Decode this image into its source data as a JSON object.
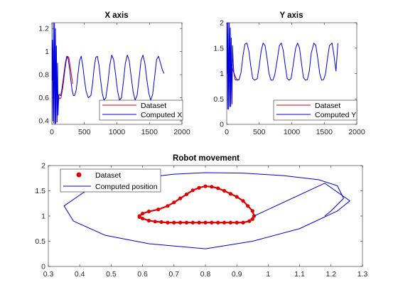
{
  "chart_data": [
    {
      "id": "x-axis-plot",
      "type": "line",
      "title": "X axis",
      "xlabel": "",
      "ylabel": "",
      "xlim": [
        0,
        2000
      ],
      "ylim": [
        0.37,
        1.25
      ],
      "xticks": [
        0,
        500,
        1000,
        1500,
        2000
      ],
      "yticks": [
        0.4,
        0.6,
        0.8,
        1,
        1.2
      ],
      "xtick_labels": [
        "0",
        "500",
        "1000",
        "1500",
        "2000"
      ],
      "ytick_labels": [
        "0.4",
        "0.6",
        "0.8",
        "1",
        "1.2"
      ],
      "grid": false,
      "legend": {
        "placement": "bottom-right",
        "entries": [
          "Dataset",
          "Computed X"
        ]
      },
      "series": [
        {
          "name": "Dataset",
          "color": "#e00000",
          "x": [
            0,
            20,
            40,
            60,
            80,
            100,
            120,
            140,
            160,
            180,
            200,
            220,
            240,
            260,
            280,
            300,
            320
          ],
          "y": [
            0.78,
            0.76,
            0.73,
            0.69,
            0.65,
            0.62,
            0.59,
            0.6,
            0.66,
            0.74,
            0.84,
            0.92,
            0.96,
            0.95,
            0.88,
            0.8,
            0.72
          ]
        },
        {
          "name": "Computed X",
          "color": "#0000e0",
          "x": [
            0,
            8,
            15,
            22,
            30,
            40,
            48,
            55,
            62,
            70,
            80,
            88,
            95,
            105,
            115,
            125,
            135,
            150,
            170,
            190,
            210,
            230,
            250,
            270,
            290,
            310,
            330,
            350,
            375,
            400,
            425,
            450,
            475,
            500,
            525,
            560,
            600,
            625,
            650,
            675,
            700,
            725,
            750,
            775,
            800,
            830,
            860,
            890,
            920,
            950,
            980,
            1010,
            1040,
            1070,
            1100,
            1130,
            1160,
            1190,
            1220,
            1250,
            1280,
            1310,
            1340,
            1370,
            1400,
            1430,
            1460,
            1490,
            1520,
            1550,
            1580,
            1610,
            1640,
            1670,
            1700,
            1725
          ],
          "y": [
            0.75,
            1.1,
            0.4,
            1.25,
            0.38,
            1.25,
            0.37,
            1.2,
            0.38,
            1.05,
            0.39,
            0.9,
            0.45,
            0.62,
            0.63,
            0.62,
            0.62,
            0.66,
            0.74,
            0.83,
            0.91,
            0.96,
            0.94,
            0.86,
            0.76,
            0.67,
            0.62,
            0.62,
            0.67,
            0.8,
            0.92,
            0.96,
            0.88,
            0.76,
            0.66,
            0.6,
            0.62,
            0.72,
            0.86,
            0.95,
            0.96,
            0.88,
            0.75,
            0.64,
            0.58,
            0.6,
            0.72,
            0.88,
            0.97,
            0.93,
            0.8,
            0.66,
            0.58,
            0.6,
            0.74,
            0.9,
            0.97,
            0.92,
            0.78,
            0.65,
            0.58,
            0.62,
            0.76,
            0.92,
            0.97,
            0.9,
            0.76,
            0.64,
            0.58,
            0.63,
            0.78,
            0.93,
            0.96,
            0.9,
            0.84,
            0.81
          ]
        }
      ]
    },
    {
      "id": "y-axis-plot",
      "type": "line",
      "title": "Y axis",
      "xlabel": "",
      "ylabel": "",
      "xlim": [
        0,
        2000
      ],
      "ylim": [
        0,
        2
      ],
      "xticks": [
        0,
        500,
        1000,
        1500,
        2000
      ],
      "yticks": [
        0,
        0.5,
        1,
        1.5,
        2
      ],
      "xtick_labels": [
        "0",
        "500",
        "1000",
        "1500",
        "2000"
      ],
      "ytick_labels": [
        "0",
        "0.5",
        "1",
        "1.5",
        "2"
      ],
      "grid": false,
      "legend": {
        "placement": "bottom-right",
        "entries": [
          "Dataset",
          "Computed Y"
        ]
      },
      "series": [
        {
          "name": "Dataset",
          "color": "#e00000",
          "x": [
            0,
            20,
            40,
            60,
            80,
            100,
            120,
            140,
            160,
            180
          ],
          "y": [
            1.55,
            1.45,
            1.35,
            1.25,
            1.15,
            1.05,
            0.98,
            0.92,
            0.88,
            0.88
          ]
        },
        {
          "name": "Computed Y",
          "color": "#0000e0",
          "x": [
            0,
            8,
            15,
            22,
            30,
            40,
            48,
            55,
            62,
            70,
            80,
            90,
            100,
            110,
            130,
            160,
            190,
            220,
            250,
            280,
            310,
            340,
            370,
            400,
            430,
            470,
            500,
            530,
            560,
            590,
            620,
            650,
            680,
            710,
            740,
            780,
            810,
            840,
            870,
            900,
            930,
            960,
            990,
            1020,
            1060,
            1090,
            1120,
            1150,
            1180,
            1210,
            1240,
            1270,
            1300,
            1340,
            1370,
            1400,
            1430,
            1460,
            1490,
            1520,
            1550,
            1580,
            1620,
            1650,
            1680,
            1710
          ],
          "y": [
            1.0,
            2.0,
            0.3,
            2.0,
            0.3,
            2.0,
            0.35,
            1.9,
            0.35,
            1.7,
            0.4,
            1.55,
            1.2,
            1.02,
            0.88,
            0.87,
            0.88,
            1.02,
            1.35,
            1.58,
            1.6,
            1.45,
            1.15,
            0.9,
            0.87,
            0.9,
            1.15,
            1.45,
            1.6,
            1.55,
            1.3,
            1.0,
            0.87,
            0.87,
            0.98,
            1.3,
            1.55,
            1.6,
            1.45,
            1.15,
            0.9,
            0.87,
            0.9,
            1.15,
            1.5,
            1.6,
            1.5,
            1.2,
            0.92,
            0.87,
            0.88,
            1.05,
            1.4,
            1.6,
            1.55,
            1.3,
            1.0,
            0.87,
            0.88,
            1.0,
            1.3,
            1.55,
            1.6,
            1.35,
            1.05,
            1.6
          ]
        }
      ]
    },
    {
      "id": "robot-movement-plot",
      "type": "scatter",
      "title": "Robot movement",
      "xlabel": "",
      "ylabel": "",
      "xlim": [
        0.3,
        1.3
      ],
      "ylim": [
        0,
        2
      ],
      "xticks": [
        0.3,
        0.4,
        0.5,
        0.6,
        0.7,
        0.8,
        0.9,
        1,
        1.1,
        1.2,
        1.3
      ],
      "yticks": [
        0,
        0.5,
        1,
        1.5,
        2
      ],
      "xtick_labels": [
        "0.3",
        "0.4",
        "0.5",
        "0.6",
        "0.7",
        "0.8",
        "0.9",
        "1",
        "1.1",
        "1.2",
        "1.3"
      ],
      "ytick_labels": [
        "0",
        "0.5",
        "1",
        "1.5",
        "2"
      ],
      "grid": false,
      "legend": {
        "placement": "top-left",
        "entries": [
          "Dataset",
          "Computed position"
        ]
      },
      "series": [
        {
          "name": "Dataset",
          "kind": "markers",
          "color": "#e00000",
          "x": [
            0.59,
            0.6,
            0.62,
            0.65,
            0.68,
            0.7,
            0.72,
            0.74,
            0.76,
            0.78,
            0.8,
            0.82,
            0.84,
            0.86,
            0.88,
            0.9,
            0.92,
            0.935,
            0.95,
            0.955,
            0.95,
            0.94,
            0.92,
            0.9,
            0.88,
            0.86,
            0.84,
            0.82,
            0.8,
            0.78,
            0.76,
            0.74,
            0.72,
            0.7,
            0.68,
            0.66,
            0.64,
            0.62,
            0.6,
            0.59
          ],
          "y": [
            1.0,
            1.05,
            1.09,
            1.13,
            1.2,
            1.27,
            1.35,
            1.43,
            1.51,
            1.56,
            1.59,
            1.58,
            1.55,
            1.5,
            1.44,
            1.38,
            1.3,
            1.2,
            1.1,
            1.0,
            0.94,
            0.9,
            0.87,
            0.87,
            0.87,
            0.87,
            0.87,
            0.87,
            0.87,
            0.87,
            0.87,
            0.87,
            0.87,
            0.87,
            0.87,
            0.88,
            0.89,
            0.91,
            0.95,
            0.98
          ]
        },
        {
          "name": "Computed position",
          "kind": "line",
          "color": "#0000e0",
          "x": [
            0.955,
            1.18,
            1.26,
            1.22,
            1.1,
            0.95,
            0.8,
            0.62,
            0.48,
            0.38,
            0.35,
            0.42,
            0.55,
            0.7,
            0.8,
            0.92,
            1.05,
            1.16,
            1.22,
            1.24,
            1.2,
            1.18
          ],
          "y": [
            1.0,
            1.65,
            1.3,
            1.1,
            0.75,
            0.5,
            0.35,
            0.45,
            0.62,
            0.9,
            1.2,
            1.5,
            1.72,
            1.83,
            1.86,
            1.85,
            1.8,
            1.72,
            1.6,
            1.35,
            1.1,
            1.0
          ]
        }
      ]
    }
  ]
}
